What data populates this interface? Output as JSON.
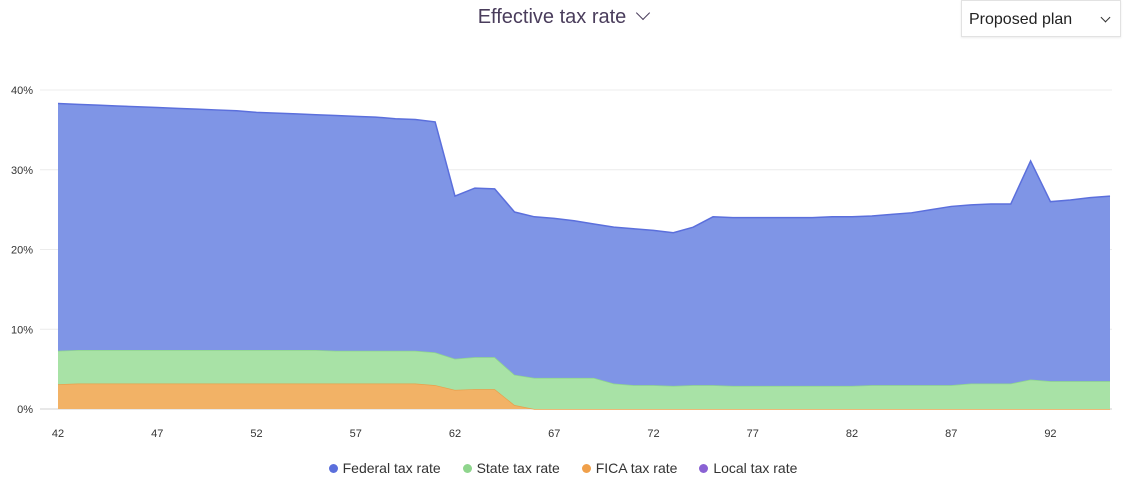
{
  "header": {
    "title": "Effective tax rate",
    "title_icon": "chevron-down-icon"
  },
  "plan_select": {
    "value": "Proposed plan",
    "icon": "chevron-down-icon"
  },
  "chart_data": {
    "type": "area",
    "stacked": true,
    "title": "",
    "xlabel": "",
    "ylabel": "",
    "x": [
      42,
      43,
      44,
      45,
      46,
      47,
      48,
      49,
      50,
      51,
      52,
      53,
      54,
      55,
      56,
      57,
      58,
      59,
      60,
      61,
      62,
      63,
      64,
      65,
      66,
      67,
      68,
      69,
      70,
      71,
      72,
      73,
      74,
      75,
      76,
      77,
      78,
      79,
      80,
      81,
      82,
      83,
      84,
      85,
      86,
      87,
      88,
      89,
      90,
      91,
      92,
      93,
      94,
      95
    ],
    "x_ticks": [
      42,
      47,
      52,
      57,
      62,
      67,
      72,
      77,
      82,
      87,
      92
    ],
    "y_ticks": [
      "0%",
      "10%",
      "20%",
      "30%",
      "40%"
    ],
    "ylim": [
      0,
      40
    ],
    "grid": true,
    "legend_position": "bottom",
    "series": [
      {
        "name": "FICA tax rate",
        "color": "#f2b266",
        "stroke": "#e9a04c",
        "values": [
          3.1,
          3.2,
          3.2,
          3.2,
          3.2,
          3.2,
          3.2,
          3.2,
          3.2,
          3.2,
          3.2,
          3.2,
          3.2,
          3.2,
          3.2,
          3.2,
          3.2,
          3.2,
          3.2,
          3.0,
          2.4,
          2.5,
          2.5,
          0.5,
          0,
          0,
          0,
          0,
          0,
          0,
          0,
          0,
          0,
          0,
          0,
          0,
          0,
          0,
          0,
          0,
          0,
          0,
          0,
          0,
          0,
          0,
          0,
          0,
          0,
          0,
          0,
          0,
          0,
          0
        ]
      },
      {
        "name": "State tax rate",
        "color": "#a8e2a6",
        "stroke": "#8fd58d",
        "values": [
          4.2,
          4.2,
          4.2,
          4.2,
          4.2,
          4.2,
          4.2,
          4.2,
          4.2,
          4.2,
          4.2,
          4.2,
          4.2,
          4.2,
          4.1,
          4.1,
          4.1,
          4.1,
          4.1,
          4.1,
          3.9,
          4.0,
          4.0,
          3.8,
          3.9,
          3.9,
          3.9,
          3.9,
          3.2,
          3.0,
          3.0,
          2.9,
          3.0,
          3.0,
          2.9,
          2.9,
          2.9,
          2.9,
          2.9,
          2.9,
          2.9,
          3.0,
          3.0,
          3.0,
          3.0,
          3.0,
          3.2,
          3.2,
          3.2,
          3.7,
          3.5,
          3.5,
          3.5,
          3.5
        ]
      },
      {
        "name": "Federal tax rate",
        "color": "#7f95e6",
        "stroke": "#5b6fdc",
        "values": [
          31.0,
          30.8,
          30.7,
          30.6,
          30.5,
          30.4,
          30.3,
          30.2,
          30.1,
          30.0,
          29.8,
          29.7,
          29.6,
          29.5,
          29.5,
          29.4,
          29.3,
          29.1,
          29.0,
          28.9,
          20.4,
          21.2,
          21.1,
          20.4,
          20.2,
          20.0,
          19.7,
          19.3,
          19.6,
          19.6,
          19.4,
          19.2,
          19.8,
          21.1,
          21.1,
          21.1,
          21.1,
          21.1,
          21.1,
          21.2,
          21.2,
          21.2,
          21.4,
          21.6,
          22.0,
          22.4,
          22.4,
          22.5,
          22.5,
          27.4,
          22.5,
          22.7,
          23.0,
          23.2
        ]
      },
      {
        "name": "Local tax rate",
        "color": "#8a62d4",
        "stroke": "#8a62d4",
        "values": [
          0,
          0,
          0,
          0,
          0,
          0,
          0,
          0,
          0,
          0,
          0,
          0,
          0,
          0,
          0,
          0,
          0,
          0,
          0,
          0,
          0,
          0,
          0,
          0,
          0,
          0,
          0,
          0,
          0,
          0,
          0,
          0,
          0,
          0,
          0,
          0,
          0,
          0,
          0,
          0,
          0,
          0,
          0,
          0,
          0,
          0,
          0,
          0,
          0,
          0,
          0,
          0,
          0,
          0
        ]
      }
    ]
  },
  "legend": [
    {
      "label": "Federal tax rate",
      "color": "#5b6fdc"
    },
    {
      "label": "State tax rate",
      "color": "#8fd58d"
    },
    {
      "label": "FICA tax rate",
      "color": "#f0a04a"
    },
    {
      "label": "Local tax rate",
      "color": "#8a62d4"
    }
  ]
}
